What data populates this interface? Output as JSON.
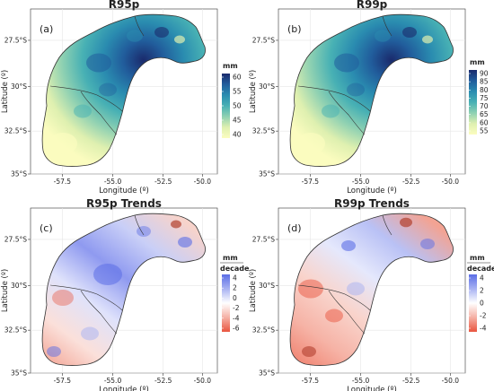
{
  "panels": [
    {
      "id": "a",
      "title": "R95p",
      "tag": "(a)",
      "xlabel": "Longitude (º)",
      "ylabel": "Latitude (º)",
      "x_ticks": [
        "-57.5",
        "-55.0",
        "-52.5",
        "-50.0"
      ],
      "y_ticks": [
        "27.5°S",
        "30°S",
        "32.5°S",
        "35°S"
      ],
      "legend": {
        "title": "mm",
        "title_bottom": "",
        "labels": [
          "60",
          "55",
          "50",
          "45",
          "40"
        ],
        "colors": [
          "#1a2a6c",
          "#215d9c",
          "#2a8cb0",
          "#48b1b4",
          "#8fd1b2",
          "#dff0b0",
          "#fbfcbf"
        ]
      },
      "fill": "seq"
    },
    {
      "id": "b",
      "title": "R99p",
      "tag": "(b)",
      "xlabel": "Longitude (º)",
      "ylabel": "Latitude (º)",
      "x_ticks": [
        "-57.5",
        "-55.0",
        "-52.5",
        "-50.0"
      ],
      "y_ticks": [
        "27.5°S",
        "30°S",
        "32.5°S",
        "35°S"
      ],
      "legend": {
        "title": "mm",
        "title_bottom": "",
        "labels": [
          "90",
          "85",
          "80",
          "75",
          "70",
          "65",
          "60",
          "55"
        ],
        "colors": [
          "#1a2a6c",
          "#215d9c",
          "#2a8cb0",
          "#48b1b4",
          "#8fd1b2",
          "#dff0b0",
          "#fbfcbf"
        ]
      },
      "fill": "seq"
    },
    {
      "id": "c",
      "title": "R95p Trends",
      "tag": "(c)",
      "xlabel": "Longitude (º)",
      "ylabel": "Latitude (º)",
      "x_ticks": [
        "-57.5",
        "-55.0",
        "-52.5",
        "-50.0"
      ],
      "y_ticks": [
        "27.5°S",
        "30°S",
        "32.5°S",
        "35°S"
      ],
      "legend": {
        "title": "mm",
        "title_bottom": "decade",
        "labels": [
          "4",
          "2",
          "0",
          "-2",
          "-4",
          "-6"
        ],
        "colors": [
          "#5b6ee6",
          "#a8b2f2",
          "#ffffff",
          "#f5b0a4",
          "#e9553f"
        ]
      },
      "fill": "div"
    },
    {
      "id": "d",
      "title": "R99p Trends",
      "tag": "(d)",
      "xlabel": "Longitude (º)",
      "ylabel": "Latitude (º)",
      "x_ticks": [
        "-57.5",
        "-55.0",
        "-52.5",
        "-50.0"
      ],
      "y_ticks": [
        "27.5°S",
        "30°S",
        "32.5°S",
        "35°S"
      ],
      "legend": {
        "title": "mm",
        "title_bottom": "decade",
        "labels": [
          "4",
          "2",
          "0",
          "-2",
          "-4"
        ],
        "colors": [
          "#5b6ee6",
          "#a8b2f2",
          "#ffffff",
          "#f5b0a4",
          "#e9553f"
        ]
      },
      "fill": "div"
    }
  ]
}
